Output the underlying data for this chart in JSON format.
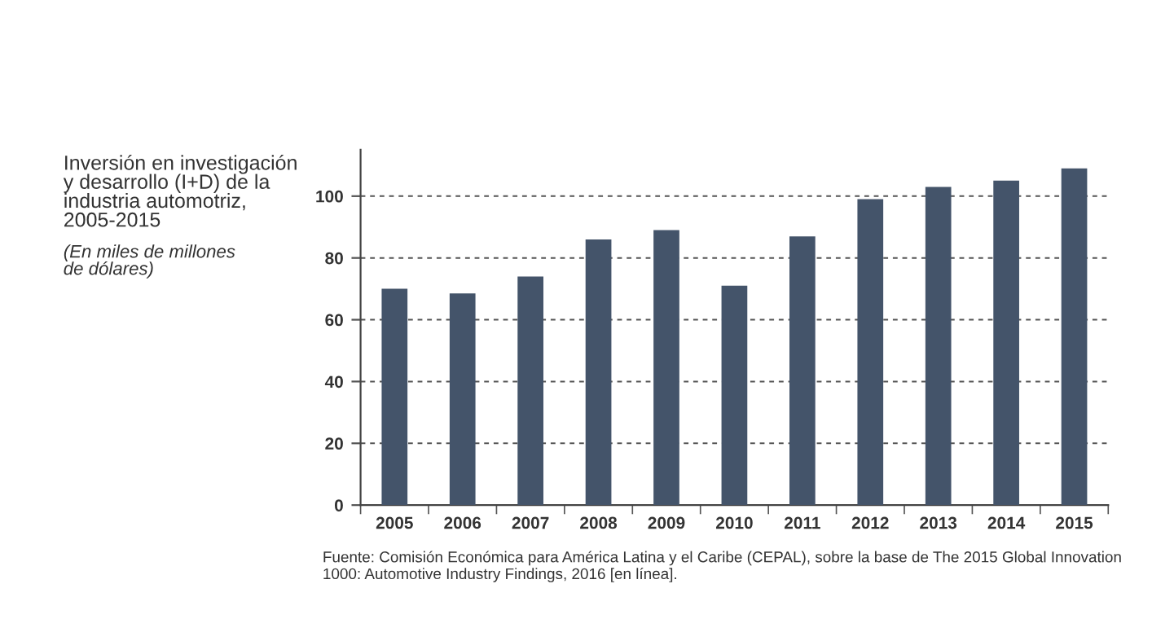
{
  "chart_data": {
    "type": "bar",
    "title": "Inversión en investigación\ny desarrollo (I+D) de la\nindustria automotriz,\n2005-2015",
    "subtitle": "(En miles de millones\nde dólares)",
    "categories": [
      "2005",
      "2006",
      "2007",
      "2008",
      "2009",
      "2010",
      "2011",
      "2012",
      "2013",
      "2014",
      "2015"
    ],
    "values": [
      70,
      68.5,
      74,
      86,
      89,
      71,
      87,
      99,
      103,
      105,
      109
    ],
    "color": "#44546a",
    "ylim": [
      0,
      115
    ],
    "yticks": [
      0,
      20,
      40,
      60,
      80,
      100
    ],
    "grid": "y",
    "annotations": [
      "Fuente: Comisión Económica para América Latina y el Caribe (CEPAL), sobre la base de The 2015 Global Innovation 1000: Automotive Industry Findings, 2016 [en línea]."
    ]
  }
}
